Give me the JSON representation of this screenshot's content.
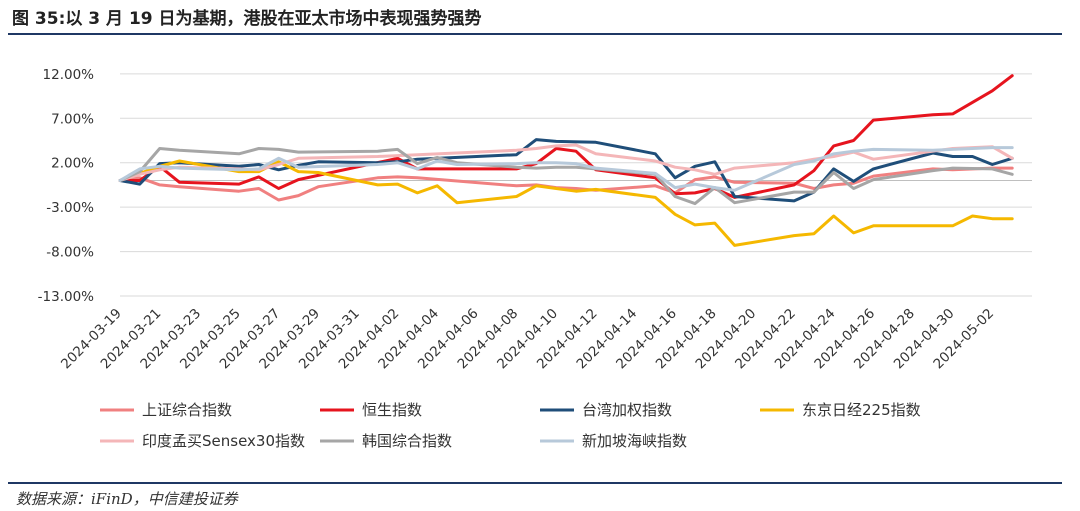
{
  "header": {
    "title": "图 35:以 3 月 19 日为基期，港股在亚太市场中表现强势强势"
  },
  "footer": {
    "source": "数据来源：iFinD，中信建投证券"
  },
  "chart_data": {
    "type": "line",
    "title": "图 35:以 3 月 19 日为基期，港股在亚太市场中表现强势强势",
    "xlabel": "",
    "ylabel": "",
    "ylim": [
      -13,
      13
    ],
    "ytick_values": [
      12,
      7,
      2,
      -3,
      -8,
      -13
    ],
    "yticks": [
      "12.00%",
      "7.00%",
      "2.00%",
      "-3.00%",
      "-8.00%",
      "-13.00%"
    ],
    "xtick_labels": [
      "2024-03-19",
      "2024-03-21",
      "2024-03-23",
      "2024-03-25",
      "2024-03-27",
      "2024-03-29",
      "2024-03-31",
      "2024-04-02",
      "2024-04-04",
      "2024-04-06",
      "2024-04-08",
      "2024-04-10",
      "2024-04-12",
      "2024-04-14",
      "2024-04-16",
      "2024-04-18",
      "2024-04-20",
      "2024-04-22",
      "2024-04-24",
      "2024-04-26",
      "2024-04-28",
      "2024-04-30",
      "2024-05-02"
    ],
    "grid": "horizontal",
    "legend": "bottom",
    "series": [
      {
        "name": "上证综合指数",
        "color": "#f08080",
        "points": [
          [
            "2024-03-19",
            0
          ],
          [
            "2024-03-20",
            0.3
          ],
          [
            "2024-03-21",
            -0.5
          ],
          [
            "2024-03-22",
            -0.7
          ],
          [
            "2024-03-25",
            -1.2
          ],
          [
            "2024-03-26",
            -0.9
          ],
          [
            "2024-03-27",
            -2.2
          ],
          [
            "2024-03-28",
            -1.7
          ],
          [
            "2024-03-29",
            -0.7
          ],
          [
            "2024-04-01",
            0.3
          ],
          [
            "2024-04-02",
            0.4
          ],
          [
            "2024-04-03",
            0.3
          ],
          [
            "2024-04-08",
            -0.6
          ],
          [
            "2024-04-09",
            -0.5
          ],
          [
            "2024-04-10",
            -0.8
          ],
          [
            "2024-04-11",
            -0.9
          ],
          [
            "2024-04-12",
            -1.1
          ],
          [
            "2024-04-15",
            -0.6
          ],
          [
            "2024-04-16",
            -1.4
          ],
          [
            "2024-04-17",
            0.1
          ],
          [
            "2024-04-18",
            0.4
          ],
          [
            "2024-04-19",
            -0.2
          ],
          [
            "2024-04-22",
            -0.3
          ],
          [
            "2024-04-23",
            -0.9
          ],
          [
            "2024-04-24",
            -0.5
          ],
          [
            "2024-04-25",
            -0.3
          ],
          [
            "2024-04-26",
            0.5
          ],
          [
            "2024-04-29",
            1.3
          ],
          [
            "2024-04-30",
            1.2
          ],
          [
            "2024-05-02",
            1.4
          ],
          [
            "2024-05-03",
            1.4
          ]
        ]
      },
      {
        "name": "恒生指数",
        "color": "#e6141e",
        "points": [
          [
            "2024-03-19",
            0
          ],
          [
            "2024-03-20",
            0
          ],
          [
            "2024-03-21",
            1.6
          ],
          [
            "2024-03-22",
            -0.2
          ],
          [
            "2024-03-25",
            -0.4
          ],
          [
            "2024-03-26",
            0.4
          ],
          [
            "2024-03-27",
            -0.9
          ],
          [
            "2024-03-28",
            0.1
          ],
          [
            "2024-04-02",
            2.5
          ],
          [
            "2024-04-03",
            1.3
          ],
          [
            "2024-04-08",
            1.3
          ],
          [
            "2024-04-09",
            1.9
          ],
          [
            "2024-04-10",
            3.6
          ],
          [
            "2024-04-11",
            3.3
          ],
          [
            "2024-04-12",
            1.2
          ],
          [
            "2024-04-15",
            0.3
          ],
          [
            "2024-04-16",
            -1.5
          ],
          [
            "2024-04-17",
            -1.4
          ],
          [
            "2024-04-18",
            -0.9
          ],
          [
            "2024-04-19",
            -1.9
          ],
          [
            "2024-04-22",
            -0.5
          ],
          [
            "2024-04-23",
            1.1
          ],
          [
            "2024-04-24",
            3.9
          ],
          [
            "2024-04-25",
            4.5
          ],
          [
            "2024-04-26",
            6.8
          ],
          [
            "2024-04-29",
            7.4
          ],
          [
            "2024-04-30",
            7.5
          ],
          [
            "2024-05-02",
            10.1
          ],
          [
            "2024-05-03",
            11.8
          ]
        ]
      },
      {
        "name": "台湾加权指数",
        "color": "#1f4e79",
        "points": [
          [
            "2024-03-19",
            0
          ],
          [
            "2024-03-20",
            -0.4
          ],
          [
            "2024-03-21",
            1.9
          ],
          [
            "2024-03-22",
            2.0
          ],
          [
            "2024-03-25",
            1.6
          ],
          [
            "2024-03-26",
            1.8
          ],
          [
            "2024-03-27",
            1.2
          ],
          [
            "2024-03-28",
            1.7
          ],
          [
            "2024-03-29",
            2.1
          ],
          [
            "2024-04-01",
            2.0
          ],
          [
            "2024-04-02",
            2.1
          ],
          [
            "2024-04-03",
            2.4
          ],
          [
            "2024-04-08",
            2.9
          ],
          [
            "2024-04-09",
            4.6
          ],
          [
            "2024-04-10",
            4.4
          ],
          [
            "2024-04-12",
            4.3
          ],
          [
            "2024-04-15",
            3.0
          ],
          [
            "2024-04-16",
            0.3
          ],
          [
            "2024-04-17",
            1.6
          ],
          [
            "2024-04-18",
            2.1
          ],
          [
            "2024-04-19",
            -1.8
          ],
          [
            "2024-04-22",
            -2.3
          ],
          [
            "2024-04-23",
            -1.3
          ],
          [
            "2024-04-24",
            1.3
          ],
          [
            "2024-04-25",
            -0.1
          ],
          [
            "2024-04-26",
            1.3
          ],
          [
            "2024-04-29",
            3.1
          ],
          [
            "2024-04-30",
            2.7
          ],
          [
            "2024-05-01",
            2.7
          ],
          [
            "2024-05-02",
            1.8
          ],
          [
            "2024-05-03",
            2.5
          ]
        ]
      },
      {
        "name": "东京日经225指数",
        "color": "#f5b800",
        "points": [
          [
            "2024-03-19",
            0
          ],
          [
            "2024-03-21",
            1.6
          ],
          [
            "2024-03-22",
            2.2
          ],
          [
            "2024-03-25",
            1.0
          ],
          [
            "2024-03-26",
            1.0
          ],
          [
            "2024-03-27",
            2.1
          ],
          [
            "2024-03-28",
            1.0
          ],
          [
            "2024-03-29",
            0.9
          ],
          [
            "2024-04-01",
            -0.5
          ],
          [
            "2024-04-02",
            -0.4
          ],
          [
            "2024-04-03",
            -1.4
          ],
          [
            "2024-04-04",
            -0.6
          ],
          [
            "2024-04-05",
            -2.5
          ],
          [
            "2024-04-08",
            -1.8
          ],
          [
            "2024-04-09",
            -0.6
          ],
          [
            "2024-04-10",
            -0.9
          ],
          [
            "2024-04-11",
            -1.2
          ],
          [
            "2024-04-12",
            -1.0
          ],
          [
            "2024-04-15",
            -1.9
          ],
          [
            "2024-04-16",
            -3.8
          ],
          [
            "2024-04-17",
            -5.0
          ],
          [
            "2024-04-18",
            -4.8
          ],
          [
            "2024-04-19",
            -7.3
          ],
          [
            "2024-04-22",
            -6.2
          ],
          [
            "2024-04-23",
            -6.0
          ],
          [
            "2024-04-24",
            -4.0
          ],
          [
            "2024-04-25",
            -5.9
          ],
          [
            "2024-04-26",
            -5.1
          ],
          [
            "2024-04-30",
            -5.1
          ],
          [
            "2024-05-01",
            -4.0
          ],
          [
            "2024-05-02",
            -4.3
          ],
          [
            "2024-05-03",
            -4.3
          ]
        ]
      },
      {
        "name": "印度孟买Sensex30指数",
        "color": "#f4b6b8",
        "points": [
          [
            "2024-03-19",
            0
          ],
          [
            "2024-03-20",
            0.7
          ],
          [
            "2024-03-21",
            1.2
          ],
          [
            "2024-03-22",
            1.5
          ],
          [
            "2024-03-25",
            1.3
          ],
          [
            "2024-03-26",
            1.2
          ],
          [
            "2024-03-27",
            1.8
          ],
          [
            "2024-03-28",
            2.5
          ],
          [
            "2024-04-01",
            2.7
          ],
          [
            "2024-04-02",
            2.8
          ],
          [
            "2024-04-03",
            2.9
          ],
          [
            "2024-04-08",
            3.4
          ],
          [
            "2024-04-09",
            3.6
          ],
          [
            "2024-04-10",
            3.9
          ],
          [
            "2024-04-11",
            4.0
          ],
          [
            "2024-04-12",
            3.0
          ],
          [
            "2024-04-15",
            2.2
          ],
          [
            "2024-04-16",
            1.5
          ],
          [
            "2024-04-17",
            1.2
          ],
          [
            "2024-04-18",
            0.7
          ],
          [
            "2024-04-19",
            1.4
          ],
          [
            "2024-04-22",
            2.0
          ],
          [
            "2024-04-23",
            2.4
          ],
          [
            "2024-04-24",
            2.7
          ],
          [
            "2024-04-25",
            3.2
          ],
          [
            "2024-04-26",
            2.4
          ],
          [
            "2024-04-29",
            3.3
          ],
          [
            "2024-04-30",
            3.6
          ],
          [
            "2024-05-02",
            3.8
          ],
          [
            "2024-05-03",
            2.5
          ]
        ]
      },
      {
        "name": "韩国综合指数",
        "color": "#a6a6a6",
        "points": [
          [
            "2024-03-19",
            0
          ],
          [
            "2024-03-20",
            1.0
          ],
          [
            "2024-03-21",
            3.6
          ],
          [
            "2024-03-22",
            3.4
          ],
          [
            "2024-03-25",
            3.0
          ],
          [
            "2024-03-26",
            3.6
          ],
          [
            "2024-03-27",
            3.5
          ],
          [
            "2024-03-28",
            3.2
          ],
          [
            "2024-04-01",
            3.3
          ],
          [
            "2024-04-02",
            3.5
          ],
          [
            "2024-04-03",
            1.9
          ],
          [
            "2024-04-04",
            2.6
          ],
          [
            "2024-04-05",
            2.0
          ],
          [
            "2024-04-08",
            1.5
          ],
          [
            "2024-04-09",
            1.4
          ],
          [
            "2024-04-10",
            1.5
          ],
          [
            "2024-04-11",
            1.5
          ],
          [
            "2024-04-12",
            1.3
          ],
          [
            "2024-04-15",
            0.7
          ],
          [
            "2024-04-16",
            -1.8
          ],
          [
            "2024-04-17",
            -2.6
          ],
          [
            "2024-04-18",
            -0.8
          ],
          [
            "2024-04-19",
            -2.5
          ],
          [
            "2024-04-22",
            -1.3
          ],
          [
            "2024-04-23",
            -1.3
          ],
          [
            "2024-04-24",
            0.9
          ],
          [
            "2024-04-25",
            -0.9
          ],
          [
            "2024-04-26",
            0.1
          ],
          [
            "2024-04-29",
            1.1
          ],
          [
            "2024-04-30",
            1.4
          ],
          [
            "2024-05-02",
            1.3
          ],
          [
            "2024-05-03",
            0.7
          ]
        ]
      },
      {
        "name": "新加坡海峡指数",
        "color": "#b7c9da",
        "points": [
          [
            "2024-03-19",
            0
          ],
          [
            "2024-03-20",
            1.3
          ],
          [
            "2024-03-21",
            1.6
          ],
          [
            "2024-03-22",
            1.4
          ],
          [
            "2024-03-25",
            1.2
          ],
          [
            "2024-03-26",
            1.3
          ],
          [
            "2024-03-27",
            2.5
          ],
          [
            "2024-03-28",
            1.5
          ],
          [
            "2024-04-01",
            1.8
          ],
          [
            "2024-04-02",
            2.0
          ],
          [
            "2024-04-03",
            1.3
          ],
          [
            "2024-04-04",
            2.2
          ],
          [
            "2024-04-05",
            1.8
          ],
          [
            "2024-04-08",
            1.9
          ],
          [
            "2024-04-09",
            2.0
          ],
          [
            "2024-04-10",
            2.0
          ],
          [
            "2024-04-11",
            1.9
          ],
          [
            "2024-04-12",
            1.4
          ],
          [
            "2024-04-15",
            0.8
          ],
          [
            "2024-04-16",
            -0.8
          ],
          [
            "2024-04-17",
            -0.4
          ],
          [
            "2024-04-18",
            -0.8
          ],
          [
            "2024-04-19",
            -1.1
          ],
          [
            "2024-04-22",
            1.8
          ],
          [
            "2024-04-23",
            2.2
          ],
          [
            "2024-04-24",
            3.0
          ],
          [
            "2024-04-25",
            3.3
          ],
          [
            "2024-04-26",
            3.5
          ],
          [
            "2024-04-29",
            3.4
          ],
          [
            "2024-04-30",
            3.5
          ],
          [
            "2024-05-02",
            3.7
          ],
          [
            "2024-05-03",
            3.7
          ]
        ]
      }
    ]
  }
}
